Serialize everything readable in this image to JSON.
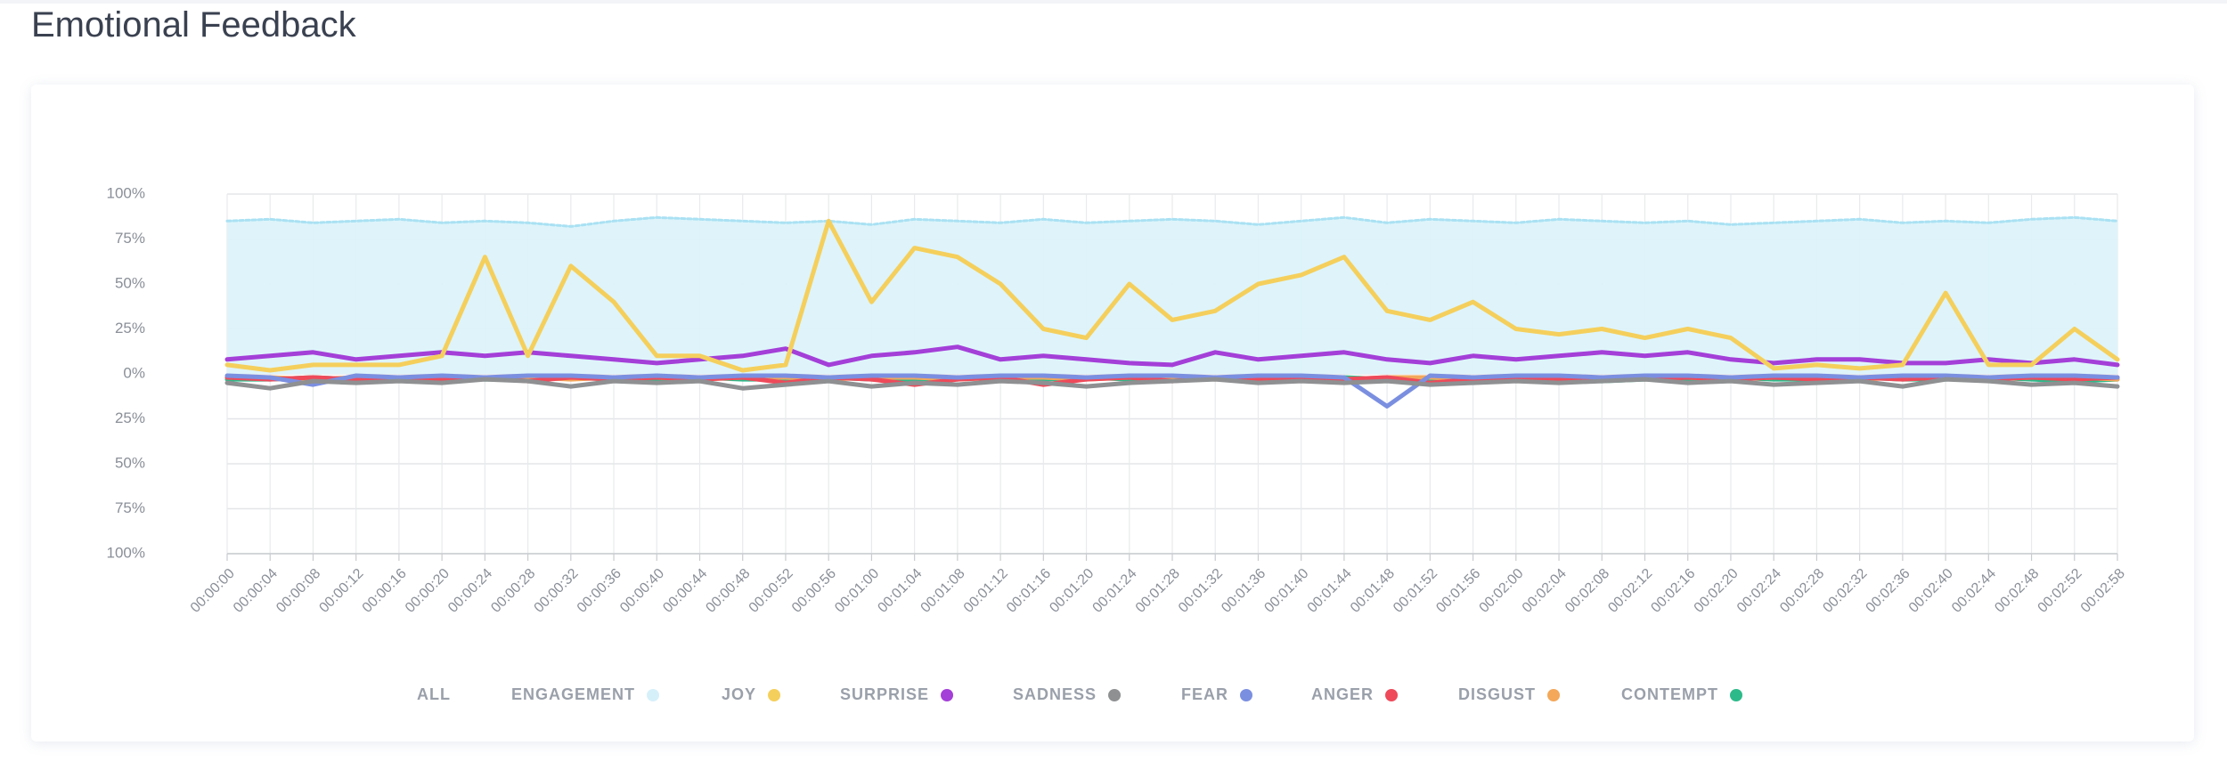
{
  "chart_data": {
    "type": "line",
    "title": "Emotional Feedback",
    "categories": [
      "00:00:00",
      "00:00:04",
      "00:00:08",
      "00:00:12",
      "00:00:16",
      "00:00:20",
      "00:00:24",
      "00:00:28",
      "00:00:32",
      "00:00:36",
      "00:00:40",
      "00:00:44",
      "00:00:48",
      "00:00:52",
      "00:00:56",
      "00:01:00",
      "00:01:04",
      "00:01:08",
      "00:01:12",
      "00:01:16",
      "00:01:20",
      "00:01:24",
      "00:01:28",
      "00:01:32",
      "00:01:36",
      "00:01:40",
      "00:01:44",
      "00:01:48",
      "00:01:52",
      "00:01:56",
      "00:02:00",
      "00:02:04",
      "00:02:08",
      "00:02:12",
      "00:02:16",
      "00:02:20",
      "00:02:24",
      "00:02:28",
      "00:02:32",
      "00:02:36",
      "00:02:40",
      "00:02:44",
      "00:02:48",
      "00:02:52",
      "00:02:58"
    ],
    "series": [
      {
        "name": "ENGAGEMENT",
        "color": "#a9e1f3",
        "area": true,
        "values": [
          85,
          86,
          84,
          85,
          86,
          84,
          85,
          84,
          82,
          85,
          87,
          86,
          85,
          84,
          85,
          83,
          86,
          85,
          84,
          86,
          84,
          85,
          86,
          85,
          83,
          85,
          87,
          84,
          86,
          85,
          84,
          86,
          85,
          84,
          85,
          83,
          84,
          85,
          86,
          84,
          85,
          84,
          86,
          87,
          85
        ]
      },
      {
        "name": "JOY",
        "color": "#f5cf5c",
        "values": [
          5,
          2,
          5,
          5,
          5,
          10,
          65,
          10,
          60,
          40,
          10,
          10,
          2,
          5,
          85,
          40,
          70,
          65,
          50,
          25,
          20,
          50,
          30,
          35,
          50,
          55,
          65,
          35,
          30,
          40,
          25,
          22,
          25,
          20,
          25,
          20,
          3,
          5,
          3,
          5,
          45,
          5,
          5,
          25,
          8
        ]
      },
      {
        "name": "SURPRISE",
        "color": "#a43fd8",
        "values": [
          8,
          10,
          12,
          8,
          10,
          12,
          10,
          12,
          10,
          8,
          6,
          8,
          10,
          14,
          5,
          10,
          12,
          15,
          8,
          10,
          8,
          6,
          5,
          12,
          8,
          10,
          12,
          8,
          6,
          10,
          8,
          10,
          12,
          10,
          12,
          8,
          6,
          8,
          8,
          6,
          6,
          8,
          6,
          8,
          5
        ]
      },
      {
        "name": "SADNESS",
        "color": "#8e9092",
        "values": [
          -5,
          -8,
          -4,
          -5,
          -4,
          -5,
          -3,
          -4,
          -7,
          -4,
          -5,
          -4,
          -8,
          -6,
          -4,
          -7,
          -5,
          -6,
          -4,
          -5,
          -7,
          -5,
          -4,
          -3,
          -5,
          -4,
          -5,
          -4,
          -6,
          -5,
          -4,
          -5,
          -4,
          -3,
          -5,
          -4,
          -6,
          -5,
          -4,
          -7,
          -3,
          -4,
          -6,
          -5,
          -7
        ]
      },
      {
        "name": "FEAR",
        "color": "#7b8fe0",
        "values": [
          -1,
          -2,
          -6,
          -1,
          -2,
          -1,
          -2,
          -1,
          -1,
          -2,
          -1,
          -2,
          -1,
          -1,
          -2,
          -1,
          -1,
          -2,
          -1,
          -1,
          -2,
          -1,
          -1,
          -2,
          -1,
          -1,
          -2,
          -18,
          -1,
          -2,
          -1,
          -1,
          -2,
          -1,
          -1,
          -2,
          -1,
          -1,
          -2,
          -1,
          -1,
          -2,
          -1,
          -1,
          -2
        ]
      },
      {
        "name": "ANGER",
        "color": "#ee4a5a",
        "values": [
          -2,
          -3,
          -2,
          -3,
          -2,
          -3,
          -2,
          -4,
          -2,
          -3,
          -2,
          -3,
          -2,
          -5,
          -2,
          -3,
          -6,
          -3,
          -2,
          -6,
          -3,
          -2,
          -4,
          -2,
          -3,
          -2,
          -3,
          -2,
          -5,
          -3,
          -2,
          -3,
          -2,
          -3,
          -2,
          -3,
          -2,
          -3,
          -2,
          -3,
          -2,
          -3,
          -2,
          -3,
          -2
        ]
      },
      {
        "name": "DISGUST",
        "color": "#f3a85a",
        "values": [
          -2,
          -2,
          -3,
          -2,
          -2,
          -3,
          -2,
          -2,
          -3,
          -2,
          -2,
          -3,
          -2,
          -2,
          -3,
          -2,
          -2,
          -3,
          -2,
          -2,
          -3,
          -2,
          -2,
          -3,
          -2,
          -2,
          -3,
          -2,
          -2,
          -3,
          -2,
          -2,
          -3,
          -2,
          -2,
          -3,
          -2,
          -2,
          -3,
          -2,
          -2,
          -3,
          -2,
          -2,
          -3
        ]
      },
      {
        "name": "CONTEMPT",
        "color": "#2dba8a",
        "values": [
          -3,
          -3,
          -2,
          -3,
          -3,
          -2,
          -3,
          -3,
          -2,
          -3,
          -3,
          -2,
          -3,
          -3,
          -2,
          -3,
          -3,
          -2,
          -3,
          -3,
          -2,
          -3,
          -3,
          -2,
          -3,
          -3,
          -2,
          -3,
          -3,
          -2,
          -3,
          -3,
          -4,
          -3,
          -3,
          -2,
          -3,
          -3,
          -2,
          -3,
          -3,
          -2,
          -3,
          -4,
          -3
        ]
      }
    ],
    "ylim": [
      -100,
      100
    ],
    "yticks": [
      {
        "value": 100,
        "label": "100%"
      },
      {
        "value": 75,
        "label": "75%"
      },
      {
        "value": 50,
        "label": "50%"
      },
      {
        "value": 25,
        "label": "25%"
      },
      {
        "value": 0,
        "label": "0%"
      },
      {
        "value": -25,
        "label": "25%"
      },
      {
        "value": -50,
        "label": "50%"
      },
      {
        "value": -75,
        "label": "75%"
      },
      {
        "value": -100,
        "label": "100%"
      }
    ],
    "grid": true,
    "legend_all": "ALL"
  }
}
